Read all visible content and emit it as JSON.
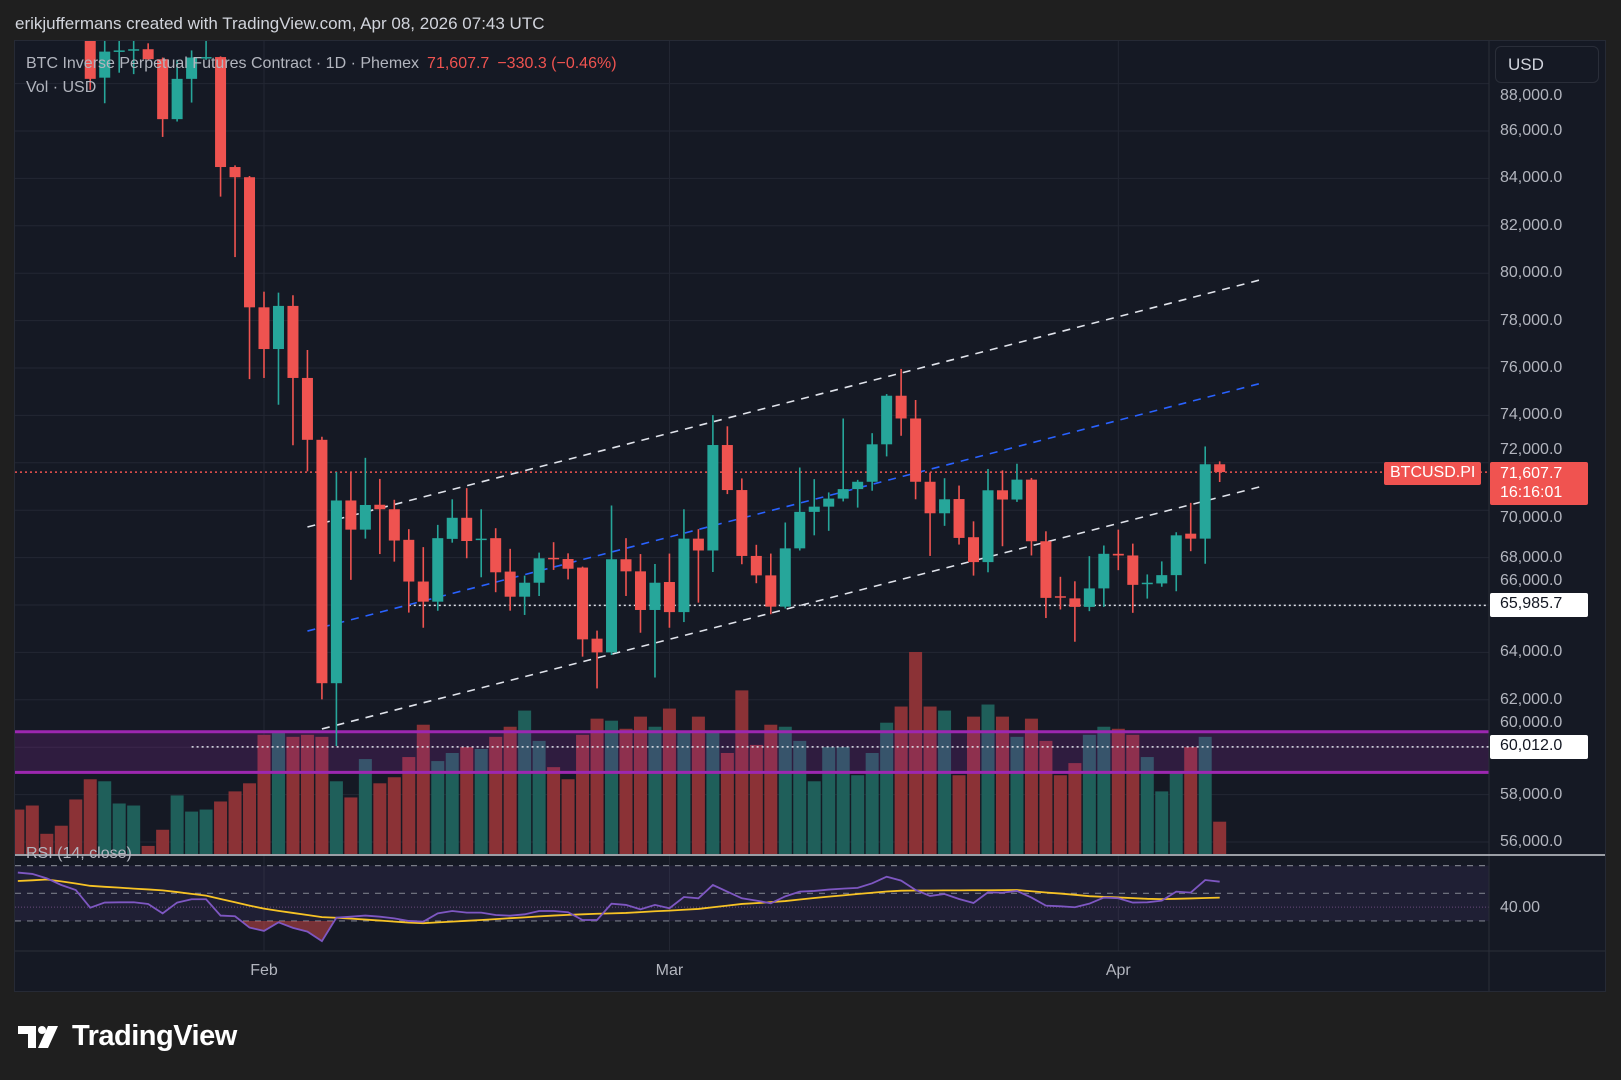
{
  "header": {
    "caption": "erikjuffermans created with TradingView.com, Apr 08, 2026 07:43 UTC"
  },
  "legend": {
    "symbol": "BTC Inverse Perpetual Futures Contract · 1D · Phemex",
    "last": "71,607.7",
    "change": "−330.3 (−0.46%)",
    "volume_label": "Vol · USD",
    "rsi_label": "RSI (14, close)"
  },
  "price_axis": {
    "currency_button": "USD",
    "ticks": [
      "88,000.0",
      "86,000.0",
      "84,000.0",
      "82,000.0",
      "80,000.0",
      "78,000.0",
      "76,000.0",
      "74,000.0",
      "72,000.0",
      "70,000.0",
      "68,000.0",
      "66,000.0",
      "64,000.0",
      "62,000.0",
      "60,000.0",
      "58,000.0",
      "56,000.0"
    ],
    "symbol_tag": "BTCUSD.PI",
    "last_price_tag": "71,607.7",
    "countdown": "16:16:01",
    "level_tags": [
      "65,985.7",
      "60,012.0"
    ],
    "rsi_tick": "40.00"
  },
  "time_axis": {
    "ticks": [
      {
        "label": "Feb",
        "date": "2026-02-01"
      },
      {
        "label": "Mar",
        "date": "2026-03-01"
      },
      {
        "label": "Apr",
        "date": "2026-04-01"
      }
    ]
  },
  "colors": {
    "up": "#26a69a",
    "down": "#ef5350",
    "vol_up": "#1f5f5a",
    "vol_down": "#8b3236",
    "rsi": "#7e57c2",
    "rsi_ma": "#f7c325",
    "band": "#9c27b0",
    "bg": "#151924",
    "grid": "#232733"
  },
  "chart_data": {
    "type": "candlestick",
    "ylim": [
      55500,
      89000
    ],
    "columns": [
      "date",
      "open",
      "high",
      "low",
      "close",
      "volume_pct_of_max",
      "volume_dir",
      "rsi",
      "rsi_ma"
    ],
    "bars": [
      [
        "2026-01-15",
        null,
        null,
        null,
        null,
        22,
        "down",
        65,
        58.9
      ],
      [
        "2026-01-16",
        null,
        null,
        null,
        null,
        24,
        "down",
        64,
        59.4
      ],
      [
        "2026-01-17",
        null,
        null,
        null,
        null,
        10,
        "down",
        60.8,
        60
      ],
      [
        "2026-01-18",
        null,
        null,
        null,
        null,
        14,
        "down",
        56,
        58.6
      ],
      [
        "2026-01-19",
        null,
        null,
        null,
        null,
        27,
        "down",
        52.4,
        57.1
      ],
      [
        "2026-01-20",
        90500,
        91000,
        87740,
        88200,
        37,
        "down",
        39.6,
        55.4
      ],
      [
        "2026-01-21",
        88250,
        90100,
        87170,
        89350,
        36,
        "up",
        43.3,
        54.7
      ],
      [
        "2026-01-22",
        89350,
        89900,
        88460,
        89400,
        25,
        "up",
        43.5,
        54.1
      ],
      [
        "2026-01-23",
        89400,
        89900,
        88400,
        89450,
        24,
        "up",
        43.5,
        53.4
      ],
      [
        "2026-01-24",
        89450,
        89700,
        89000,
        89030,
        4,
        "down",
        42.3,
        52.8
      ],
      [
        "2026-01-25",
        89030,
        89100,
        85750,
        86500,
        12,
        "down",
        35.5,
        52.1
      ],
      [
        "2026-01-26",
        86500,
        89000,
        86400,
        88200,
        29,
        "up",
        43.3,
        50.9
      ],
      [
        "2026-01-27",
        88200,
        89400,
        87200,
        89100,
        21,
        "up",
        45.7,
        49.6
      ],
      [
        "2026-01-28",
        89100,
        90100,
        89000,
        89120,
        22,
        "up",
        45.7,
        48.3
      ],
      [
        "2026-01-29",
        89120,
        89150,
        83230,
        84480,
        26,
        "down",
        33.9,
        45.9
      ],
      [
        "2026-01-30",
        84480,
        84550,
        80680,
        84050,
        31,
        "down",
        33.4,
        43.5
      ],
      [
        "2026-01-31",
        84050,
        84100,
        75530,
        78560,
        35,
        "down",
        25.2,
        41.1
      ],
      [
        "2026-02-01",
        78560,
        79220,
        75580,
        76800,
        59,
        "down",
        22.8,
        38.9
      ],
      [
        "2026-02-02",
        76800,
        79180,
        74450,
        78620,
        61,
        "up",
        29,
        37.3
      ],
      [
        "2026-02-03",
        78620,
        79070,
        72740,
        75580,
        58,
        "down",
        25,
        35.8
      ],
      [
        "2026-02-04",
        75580,
        76760,
        71640,
        72970,
        59,
        "down",
        22.3,
        34.3
      ],
      [
        "2026-02-05",
        72970,
        73100,
        62020,
        62700,
        58,
        "down",
        15.4,
        32.8
      ],
      [
        "2026-02-06",
        62700,
        71610,
        60050,
        70410,
        36,
        "up",
        32.4,
        32.3
      ],
      [
        "2026-02-07",
        70410,
        71600,
        67060,
        69180,
        28,
        "down",
        33.1,
        31.7
      ],
      [
        "2026-02-08",
        69180,
        72210,
        68800,
        70220,
        47,
        "up",
        33.9,
        31.0
      ],
      [
        "2026-02-09",
        70230,
        71320,
        68150,
        70040,
        35,
        "down",
        33.1,
        30.3
      ],
      [
        "2026-02-10",
        70040,
        70440,
        67830,
        68720,
        38,
        "down",
        31.9,
        29.5
      ],
      [
        "2026-02-11",
        68750,
        69200,
        65680,
        66990,
        48,
        "down",
        30,
        28.8
      ],
      [
        "2026-02-12",
        66990,
        68440,
        65040,
        66140,
        64,
        "down",
        29.5,
        28.4
      ],
      [
        "2026-02-13",
        66140,
        69380,
        65760,
        68820,
        46,
        "up",
        35.5,
        29.0
      ],
      [
        "2026-02-14",
        68790,
        70460,
        68630,
        69680,
        50,
        "up",
        37.2,
        29.5
      ],
      [
        "2026-02-15",
        69680,
        70930,
        67970,
        68700,
        53,
        "down",
        36,
        30.1
      ],
      [
        "2026-02-16",
        68760,
        70040,
        67170,
        68800,
        52,
        "up",
        36,
        30.7
      ],
      [
        "2026-02-17",
        68820,
        69240,
        66540,
        67380,
        58,
        "down",
        34.3,
        31.3
      ],
      [
        "2026-02-18",
        67410,
        68370,
        65760,
        66350,
        63,
        "down",
        33.8,
        32.0
      ],
      [
        "2026-02-19",
        66350,
        67240,
        65580,
        66940,
        71,
        "up",
        34.8,
        32.6
      ],
      [
        "2026-02-20",
        66940,
        68210,
        66380,
        67970,
        56,
        "up",
        37.2,
        33.3
      ],
      [
        "2026-02-21",
        67990,
        68650,
        67480,
        67950,
        43,
        "down",
        37.2,
        33.9
      ],
      [
        "2026-02-22",
        67940,
        68180,
        67080,
        67530,
        37,
        "down",
        36.3,
        34.4
      ],
      [
        "2026-02-23",
        67580,
        67620,
        63820,
        64550,
        59,
        "down",
        30.7,
        34.8
      ],
      [
        "2026-02-24",
        64580,
        64920,
        62480,
        64000,
        67,
        "down",
        30.7,
        35.2
      ],
      [
        "2026-02-25",
        64000,
        70200,
        63890,
        67930,
        66,
        "up",
        42.5,
        35.5
      ],
      [
        "2026-02-26",
        67930,
        68820,
        66380,
        67420,
        62,
        "down",
        41.6,
        35.8
      ],
      [
        "2026-02-27",
        67420,
        68150,
        64830,
        65790,
        68,
        "down",
        38.4,
        36.4
      ],
      [
        "2026-02-28",
        65790,
        67730,
        62940,
        66940,
        63,
        "up",
        41.6,
        37.0
      ],
      [
        "2026-03-01",
        66970,
        68170,
        65040,
        65700,
        72,
        "down",
        39.2,
        37.5
      ],
      [
        "2026-03-02",
        65700,
        70040,
        65280,
        68800,
        61,
        "up",
        47.3,
        38.1
      ],
      [
        "2026-03-03",
        68800,
        69200,
        66100,
        68300,
        68,
        "down",
        46.4,
        38.7
      ],
      [
        "2026-03-04",
        68300,
        74010,
        67390,
        72750,
        61,
        "up",
        56,
        39.9
      ],
      [
        "2026-03-05",
        72750,
        73540,
        70680,
        70850,
        50,
        "down",
        51.2,
        41.1
      ],
      [
        "2026-03-06",
        70850,
        71340,
        67720,
        68070,
        81,
        "down",
        46.4,
        42.3
      ],
      [
        "2026-03-07",
        68070,
        68540,
        66920,
        67250,
        54,
        "down",
        44.7,
        42.9
      ],
      [
        "2026-03-08",
        67250,
        68170,
        65610,
        65930,
        64,
        "down",
        42.8,
        43.6
      ],
      [
        "2026-03-09",
        65930,
        69480,
        65850,
        68390,
        63,
        "up",
        47.8,
        44.4
      ],
      [
        "2026-03-10",
        68390,
        71800,
        68300,
        69930,
        56,
        "up",
        51.2,
        45.5
      ],
      [
        "2026-03-11",
        69930,
        71310,
        68940,
        70150,
        36,
        "up",
        51.7,
        46.6
      ],
      [
        "2026-03-12",
        70150,
        70750,
        69130,
        70490,
        53,
        "up",
        52.7,
        47.6
      ],
      [
        "2026-03-13",
        70490,
        73870,
        70370,
        70890,
        53,
        "up",
        53.4,
        48.5
      ],
      [
        "2026-03-14",
        70890,
        71280,
        70110,
        71200,
        39,
        "up",
        53.9,
        49.5
      ],
      [
        "2026-03-15",
        71200,
        73250,
        70820,
        72780,
        50,
        "up",
        57.2,
        50.4
      ],
      [
        "2026-03-16",
        72780,
        74900,
        72270,
        74830,
        65,
        "up",
        62,
        51.3
      ],
      [
        "2026-03-17",
        74830,
        75960,
        73140,
        73870,
        73,
        "down",
        59.2,
        51.9
      ],
      [
        "2026-03-18",
        73870,
        74650,
        70460,
        71200,
        100,
        "down",
        52.4,
        52.0
      ],
      [
        "2026-03-19",
        71200,
        71590,
        68070,
        69870,
        73,
        "down",
        48.1,
        52.0
      ],
      [
        "2026-03-20",
        69870,
        71350,
        69340,
        70460,
        71,
        "up",
        49.5,
        52.1
      ],
      [
        "2026-03-21",
        70470,
        71040,
        68550,
        68830,
        39,
        "down",
        45.9,
        52.1
      ],
      [
        "2026-03-22",
        68860,
        69530,
        67240,
        67810,
        68,
        "down",
        43,
        52.2
      ],
      [
        "2026-03-23",
        67810,
        71740,
        67380,
        70840,
        74,
        "up",
        50.7,
        52.2
      ],
      [
        "2026-03-24",
        70840,
        71680,
        68480,
        70450,
        68,
        "down",
        50.5,
        52.3
      ],
      [
        "2026-03-25",
        70450,
        71960,
        70350,
        71290,
        58,
        "up",
        51.7,
        52.4
      ],
      [
        "2026-03-26",
        71290,
        71360,
        68090,
        68690,
        67,
        "down",
        46.9,
        51.5
      ],
      [
        "2026-03-27",
        68690,
        69110,
        65450,
        66300,
        56,
        "down",
        41.1,
        50.6
      ],
      [
        "2026-03-28",
        66370,
        67190,
        65810,
        66340,
        39,
        "down",
        40.6,
        49.8
      ],
      [
        "2026-03-29",
        66280,
        67000,
        64450,
        65920,
        45,
        "down",
        39.9,
        48.9
      ],
      [
        "2026-03-30",
        65920,
        68060,
        65740,
        66700,
        59,
        "up",
        42.5,
        47.9
      ],
      [
        "2026-03-31",
        66700,
        68510,
        65920,
        68160,
        63,
        "up",
        46.9,
        47.4
      ],
      [
        "2026-04-01",
        68160,
        69180,
        67470,
        68090,
        62,
        "down",
        46.4,
        47.0
      ],
      [
        "2026-04-02",
        68090,
        68590,
        65670,
        66850,
        59,
        "down",
        43.3,
        46.5
      ],
      [
        "2026-04-03",
        66900,
        67290,
        66270,
        66940,
        48,
        "up",
        43.5,
        46.0
      ],
      [
        "2026-04-04",
        66910,
        67840,
        66770,
        67260,
        31,
        "up",
        44.7,
        45.8
      ],
      [
        "2026-04-05",
        67260,
        69070,
        66580,
        68940,
        40,
        "up",
        51.2,
        46.0
      ],
      [
        "2026-04-06",
        69010,
        70310,
        68270,
        68800,
        53,
        "down",
        50.5,
        46.3
      ],
      [
        "2026-04-07",
        68800,
        72690,
        67740,
        71938,
        58,
        "up",
        59.6,
        46.6
      ],
      [
        "2026-04-08",
        71938,
        72060,
        71190,
        71607.7,
        16,
        "down",
        58.4,
        46.9
      ]
    ],
    "trendlines": [
      {
        "from": [
          "2026-02-04",
          69290
        ],
        "to": [
          "2026-04-11",
          79750
        ],
        "color": "#e0e3eb",
        "style": "dashed"
      },
      {
        "from": [
          "2026-02-04",
          64900
        ],
        "to": [
          "2026-04-11",
          75380
        ],
        "color": "#2962ff",
        "style": "dashed"
      },
      {
        "from": [
          "2026-02-05",
          60770
        ],
        "to": [
          "2026-04-11",
          71020
        ],
        "color": "#e0e3eb",
        "style": "dashed"
      }
    ],
    "horizontal_lines": [
      {
        "price": 71607.7,
        "from": null,
        "color": "#ef5350",
        "style": "dotted"
      },
      {
        "price": 65985.7,
        "from": "2026-02-11",
        "color": "#e0e3eb",
        "style": "dotted"
      },
      {
        "price": 60012.0,
        "from": "2026-01-27",
        "color": "#e0e3eb",
        "style": "dotted"
      }
    ],
    "zone": {
      "top": 60650,
      "bottom": 58940
    },
    "rsi_levels": [
      70,
      50,
      30
    ],
    "grid": true
  },
  "branding": {
    "logo_text": "TradingView"
  }
}
